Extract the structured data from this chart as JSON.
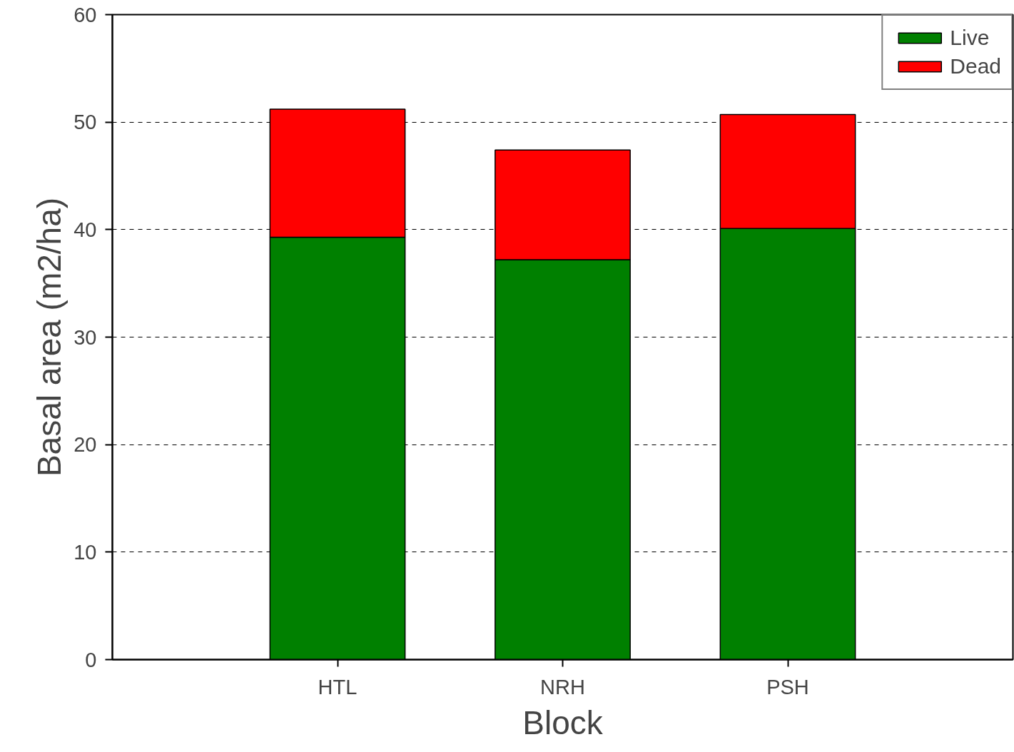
{
  "chart_data": {
    "type": "bar",
    "stacked": true,
    "xlabel": "Block",
    "ylabel": "Basal area (m2/ha)",
    "categories": [
      "HTL",
      "NRH",
      "PSH"
    ],
    "series": [
      {
        "name": "Live",
        "color": "#008000",
        "values": [
          39.3,
          37.2,
          40.1
        ]
      },
      {
        "name": "Dead",
        "color": "#ff0000",
        "values": [
          11.9,
          10.2,
          10.6
        ]
      }
    ],
    "ylim": [
      0,
      60
    ],
    "yticks": [
      0,
      10,
      20,
      30,
      40,
      50,
      60
    ],
    "grid": "y",
    "legend": "top right"
  }
}
